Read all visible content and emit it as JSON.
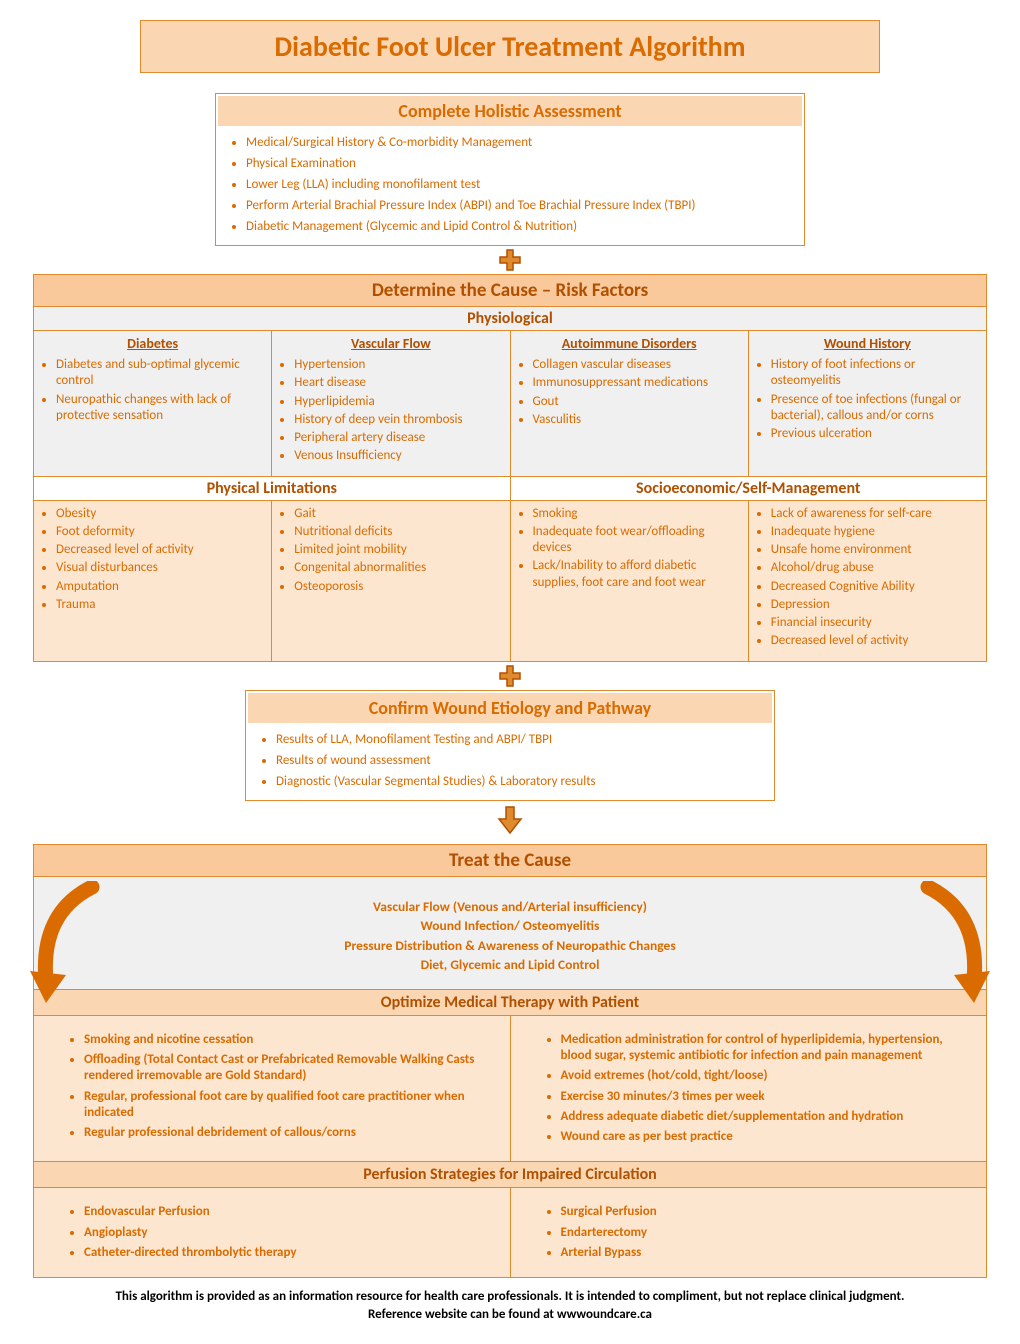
{
  "colors": {
    "accent": "#d96b00",
    "accent_dark": "#b05000",
    "header_bg": "#fad7b2",
    "header_bg_dark": "#f9c89b",
    "cell_grey": "#f0f0f0",
    "cell_peach": "#fce6d0",
    "border": "#e08a2e"
  },
  "title": "Diabetic Foot Ulcer Treatment Algorithm",
  "assessment": {
    "heading": "Complete Holistic Assessment",
    "items": [
      "Medical/Surgical  History & Co-morbidity Management",
      "Physical Examination",
      "Lower Leg (LLA) including monofilament test",
      "Perform Arterial Brachial Pressure Index (ABPI) and Toe Brachial Pressure Index (TBPI)",
      "Diabetic Management (Glycemic and Lipid Control & Nutrition)"
    ]
  },
  "risk": {
    "heading": "Determine the Cause – Risk Factors",
    "physio_heading": "Physiological",
    "phys_limit_heading": "Physical Limitations",
    "socio_heading": "Socioeconomic/Self-Management",
    "cols": {
      "diabetes": {
        "title": "Diabetes",
        "items": [
          "Diabetes and sub-optimal glycemic control",
          "Neuropathic changes with lack of protective sensation"
        ]
      },
      "vascular": {
        "title": "Vascular Flow",
        "items": [
          "Hypertension",
          "Heart disease",
          "Hyperlipidemia",
          "History of deep vein thrombosis",
          "Peripheral artery disease",
          "Venous Insufficiency"
        ]
      },
      "autoimmune": {
        "title": "Autoimmune Disorders",
        "items": [
          "Collagen vascular diseases",
          "Immunosuppressant medications",
          "Gout",
          "Vasculitis"
        ]
      },
      "wound": {
        "title": "Wound History",
        "items": [
          "History of foot infections or osteomyelitis",
          "Presence of toe infections (fungal or bacterial), callous and/or corns",
          "Previous ulceration"
        ]
      }
    },
    "physlimit_a": [
      "Obesity",
      "Foot deformity",
      "Decreased level of activity",
      "Visual disturbances",
      "Amputation",
      "Trauma"
    ],
    "physlimit_b": [
      "Gait",
      "Nutritional deficits",
      "Limited joint mobility",
      "Congenital abnormalities",
      "Osteoporosis"
    ],
    "socio_a": [
      "Smoking",
      "Inadequate foot wear/offloading devices",
      "Lack/Inability to afford diabetic supplies, foot care and foot wear"
    ],
    "socio_b": [
      "Lack of awareness for self-care",
      "Inadequate hygiene",
      "Unsafe home environment",
      "Alcohol/drug abuse",
      "Decreased Cognitive Ability",
      "Depression",
      "Financial insecurity",
      "Decreased level of activity"
    ]
  },
  "confirm": {
    "heading": "Confirm Wound Etiology and Pathway",
    "items": [
      "Results of LLA, Monofilament Testing and ABPI/ TBPI",
      "Results of wound assessment",
      "Diagnostic (Vascular Segmental Studies) & Laboratory results"
    ]
  },
  "treat": {
    "heading": "Treat the Cause",
    "center": [
      "Vascular Flow (Venous and/Arterial insufficiency)",
      "Wound Infection/ Osteomyelitis",
      "Pressure Distribution & Awareness of Neuropathic Changes",
      "Diet, Glycemic and Lipid Control"
    ],
    "optimize_heading": "Optimize Medical Therapy with Patient",
    "opt_left": [
      "Smoking and nicotine cessation",
      "Offloading (Total Contact Cast or Prefabricated Removable Walking Casts rendered irremovable are Gold Standard)",
      "Regular, professional foot care by qualified foot care practitioner when indicated",
      "Regular professional debridement of callous/corns"
    ],
    "opt_right": [
      "Medication administration for control of hyperlipidemia, hypertension, blood sugar,  systemic antibiotic for infection and pain management",
      "Avoid extremes (hot/cold, tight/loose)",
      "Exercise 30 minutes/3 times per week",
      "Address adequate diabetic diet/supplementation and hydration",
      "Wound care as per best practice"
    ],
    "perfusion_heading": "Perfusion Strategies for Impaired Circulation",
    "perf_left": [
      "Endovascular Perfusion",
      "Angioplasty",
      "Catheter-directed thrombolytic therapy"
    ],
    "perf_right": [
      "Surgical Perfusion",
      "Endarterectomy",
      "Arterial Bypass"
    ]
  },
  "footer": {
    "line1": "This algorithm is provided as an information resource for health care professionals. It is intended to compliment, but not replace clinical judgment.",
    "line2": "Reference website can be found at wwwoundcare.ca"
  }
}
